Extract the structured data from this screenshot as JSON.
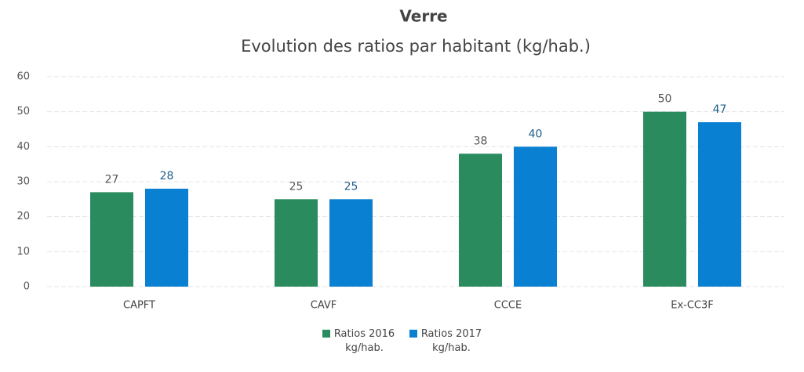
{
  "chart_data": {
    "type": "bar",
    "title": "Verre",
    "subtitle": "Evolution des ratios par habitant (kg/hab.)",
    "categories": [
      "CAPFT",
      "CAVF",
      "CCCE",
      "Ex-CC3F"
    ],
    "series": [
      {
        "name": "Ratios 2016 kg/hab.",
        "color": "#2a8c5e",
        "values": [
          27,
          25,
          38,
          50
        ]
      },
      {
        "name": "Ratios 2017 kg/hab.",
        "color": "#0a80d2",
        "values": [
          28,
          25,
          40,
          47
        ]
      }
    ],
    "ylim": [
      0,
      60
    ],
    "yticks": [
      0,
      10,
      20,
      30,
      40,
      50,
      60
    ],
    "grid": true,
    "legend": "bottom"
  }
}
